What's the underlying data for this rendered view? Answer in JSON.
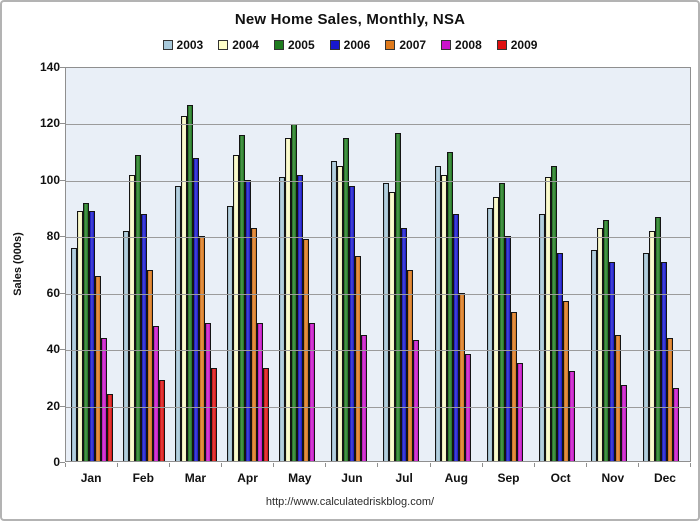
{
  "title": "New Home Sales, Monthly, NSA",
  "y_axis": {
    "label": "Sales (000s)",
    "ticks": [
      140,
      120,
      100,
      80,
      60,
      40,
      20,
      0
    ]
  },
  "footer": {
    "url": "http://www.calculatedriskblog.com/"
  },
  "chart_data": {
    "type": "bar",
    "title": "New Home Sales, Monthly, NSA",
    "xlabel": "",
    "ylabel": "Sales (000s)",
    "ylim": [
      0,
      140
    ],
    "y_tick_step": 20,
    "grid": true,
    "legend_position": "top",
    "plot_background": "#e9eff7",
    "categories": [
      "Jan",
      "Feb",
      "Mar",
      "Apr",
      "May",
      "Jun",
      "Jul",
      "Aug",
      "Sep",
      "Oct",
      "Nov",
      "Dec"
    ],
    "series": [
      {
        "name": "2003",
        "color": "#a9cadc",
        "values": [
          76,
          82,
          98,
          91,
          101,
          107,
          99,
          105,
          90,
          88,
          75,
          74
        ]
      },
      {
        "name": "2004",
        "color": "#ffffc9",
        "values": [
          89,
          102,
          123,
          109,
          115,
          105,
          96,
          102,
          94,
          101,
          83,
          82
        ]
      },
      {
        "name": "2005",
        "color": "#1f7c1f",
        "values": [
          92,
          109,
          127,
          116,
          120,
          115,
          117,
          110,
          99,
          105,
          86,
          87
        ]
      },
      {
        "name": "2006",
        "color": "#1717cf",
        "values": [
          89,
          88,
          108,
          100,
          102,
          98,
          83,
          88,
          80,
          74,
          71,
          71
        ]
      },
      {
        "name": "2007",
        "color": "#df7a1c",
        "values": [
          66,
          68,
          80,
          83,
          79,
          73,
          68,
          60,
          53,
          57,
          45,
          44
        ]
      },
      {
        "name": "2008",
        "color": "#cc14cc",
        "values": [
          44,
          48,
          49,
          49,
          49,
          45,
          43,
          38,
          35,
          32,
          27,
          26
        ]
      },
      {
        "name": "2009",
        "color": "#df1010",
        "values": [
          24,
          29,
          33,
          33,
          null,
          null,
          null,
          null,
          null,
          null,
          null,
          null
        ]
      }
    ]
  }
}
